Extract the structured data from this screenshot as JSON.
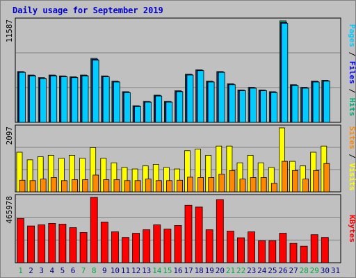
{
  "chart_data": {
    "type": "bar",
    "title": "Daily usage for September 2019",
    "days": [
      "1",
      "2",
      "3",
      "4",
      "5",
      "6",
      "7",
      "8",
      "9",
      "10",
      "11",
      "12",
      "13",
      "14",
      "15",
      "16",
      "17",
      "18",
      "19",
      "20",
      "21",
      "22",
      "23",
      "24",
      "25",
      "26",
      "27",
      "28",
      "29",
      "30",
      "31"
    ],
    "weekend_days": [
      1,
      7,
      8,
      14,
      15,
      21,
      22,
      28,
      29
    ],
    "panels": [
      {
        "ymax_label": "11587",
        "ymax": 11587,
        "side_labels": [
          {
            "text": "Pages",
            "color": "#00ccff"
          },
          {
            "text": " / ",
            "color": "#000000"
          },
          {
            "text": "Files",
            "color": "#0000ff"
          },
          {
            "text": " / ",
            "color": "#000000"
          },
          {
            "text": "Hits",
            "color": "#00aa77"
          }
        ],
        "series": [
          {
            "name": "Hits",
            "color": "#00aa77",
            "values": [
              5800,
              5400,
              5100,
              5400,
              5300,
              5200,
              5400,
              7300,
              5300,
              4700,
              3500,
              1900,
              2400,
              3100,
              2400,
              3600,
              5500,
              6000,
              4700,
              5800,
              4400,
              3700,
              4000,
              3700,
              3500,
              11587,
              4300,
              4000,
              4700,
              4800,
              null
            ]
          },
          {
            "name": "Files",
            "color": "#0000ff",
            "values": [
              5750,
              5350,
              5050,
              5350,
              5250,
              5150,
              5350,
              7200,
              5250,
              4650,
              3450,
              1850,
              2350,
              3050,
              2350,
              3550,
              5450,
              5950,
              4650,
              5750,
              4350,
              3650,
              3950,
              3650,
              3450,
              11400,
              4250,
              3950,
              4650,
              4750,
              null
            ]
          },
          {
            "name": "Pages",
            "color": "#00ccff",
            "values": [
              5700,
              5300,
              5000,
              5300,
              5200,
              5100,
              5300,
              7100,
              5200,
              4600,
              3400,
              1800,
              2300,
              3000,
              2300,
              3500,
              5400,
              5900,
              4600,
              5700,
              4300,
              3600,
              3900,
              3600,
              3400,
              11300,
              4200,
              3900,
              4600,
              4700,
              null
            ]
          }
        ]
      },
      {
        "ymax_label": "2097",
        "ymax": 2097,
        "side_labels": [
          {
            "text": "Sites",
            "color": "#ff8800"
          },
          {
            "text": " / ",
            "color": "#000000"
          },
          {
            "text": "Visits",
            "color": "#ffff00"
          }
        ],
        "series": [
          {
            "name": "Visits",
            "color": "#ffff00",
            "values": [
              1300,
              1050,
              1150,
              1200,
              1100,
              1200,
              1100,
              1450,
              1100,
              950,
              800,
              750,
              850,
              900,
              800,
              750,
              1350,
              1400,
              1200,
              1500,
              1500,
              950,
              1200,
              950,
              800,
              2097,
              1000,
              850,
              1300,
              1500,
              null
            ]
          },
          {
            "name": "Sites",
            "color": "#ff8800",
            "values": [
              380,
              370,
              420,
              470,
              370,
              400,
              400,
              550,
              400,
              400,
              370,
              370,
              420,
              370,
              370,
              380,
              480,
              470,
              470,
              580,
              700,
              420,
              470,
              470,
              280,
              1000,
              700,
              420,
              700,
              930,
              null
            ]
          }
        ]
      },
      {
        "ymax_label": "465978",
        "ymax": 465978,
        "side_labels": [
          {
            "text": "KBytes",
            "color": "#ff0000"
          }
        ],
        "series": [
          {
            "name": "KBytes",
            "color": "#ff0000",
            "values": [
              315000,
              262000,
              270000,
              280000,
              275000,
              250000,
              215000,
              465978,
              290000,
              220000,
              180000,
              210000,
              235000,
              270000,
              240000,
              265000,
              410000,
              397000,
              235000,
              450000,
              225000,
              178000,
              220000,
              157000,
              157000,
              210000,
              138000,
              118000,
              200000,
              180000,
              null
            ]
          }
        ]
      }
    ]
  }
}
